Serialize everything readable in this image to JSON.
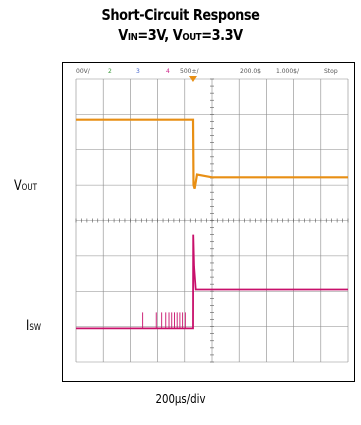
{
  "title": "Short-Circuit Response",
  "subtitle": {
    "v": "V",
    "in_sub": "IN",
    "mid": "=3V, V",
    "out_sub": "OUT",
    "tail": "=3.3V"
  },
  "labels": {
    "vout_main": "V",
    "vout_sub": "OUT",
    "isw_main": "I",
    "isw_sub": "SW"
  },
  "x_scale": "200µs/div",
  "scope_header": [
    "00V/",
    "2",
    "3",
    "4",
    "500±/",
    "200.0$",
    "1.000$/",
    "Stop"
  ],
  "colors": {
    "vout_trace": "#e88f14",
    "isw_trace": "#c8106b",
    "header_green": "#3a9a3a",
    "header_blue": "#4466cc",
    "header_magenta": "#cc2288",
    "trigger": "#e88f14"
  },
  "chart_data": {
    "type": "line",
    "title": "Short-Circuit Response",
    "xlabel": "",
    "ylabel": "",
    "x_grid_divisions": 10,
    "y_grid_divisions": 8,
    "xlim": [
      0,
      10
    ],
    "ylim": [
      0,
      8
    ],
    "trigger_x_div": 4.3,
    "series": [
      {
        "name": "VOUT",
        "x": [
          0,
          4.3,
          4.32,
          4.36,
          4.45,
          5.0,
          10
        ],
        "y": [
          6.85,
          6.85,
          5.0,
          4.9,
          5.3,
          5.22,
          5.22
        ]
      },
      {
        "name": "ISW",
        "x": [
          0,
          4.3,
          4.31,
          4.34,
          4.4,
          5.0,
          10
        ],
        "y": [
          0.95,
          0.95,
          3.6,
          2.7,
          2.05,
          2.05,
          2.05
        ]
      }
    ],
    "isw_pulse_x": [
      2.45,
      2.95,
      3.15,
      3.3,
      3.42,
      3.52,
      3.62,
      3.72,
      3.82,
      3.92,
      4.02
    ],
    "grid": true
  }
}
